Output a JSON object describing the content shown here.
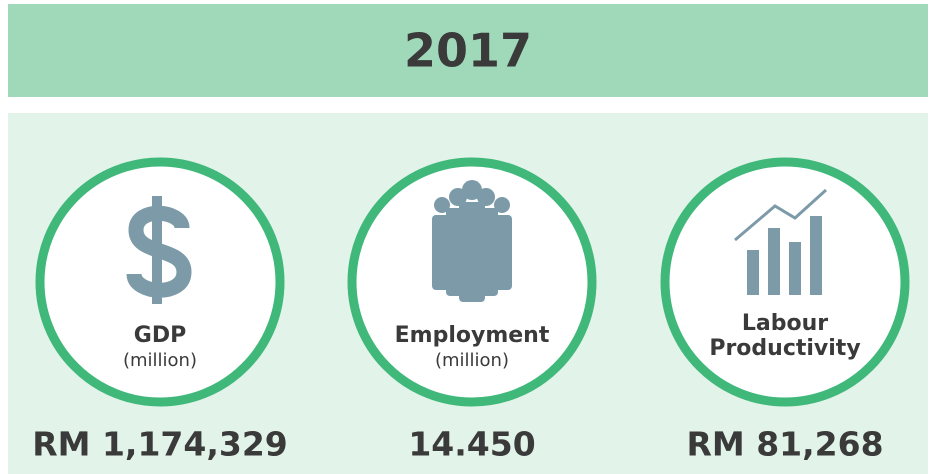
{
  "header": {
    "title": "2017"
  },
  "items": [
    {
      "label": [
        "GDP"
      ],
      "unit": "(million)",
      "value": "RM 1,174,329"
    },
    {
      "label": [
        "Employment"
      ],
      "unit": "(million)",
      "value": "14.450"
    },
    {
      "label": [
        "Labour",
        "Productivity"
      ],
      "value": "RM 81,268"
    }
  ]
}
